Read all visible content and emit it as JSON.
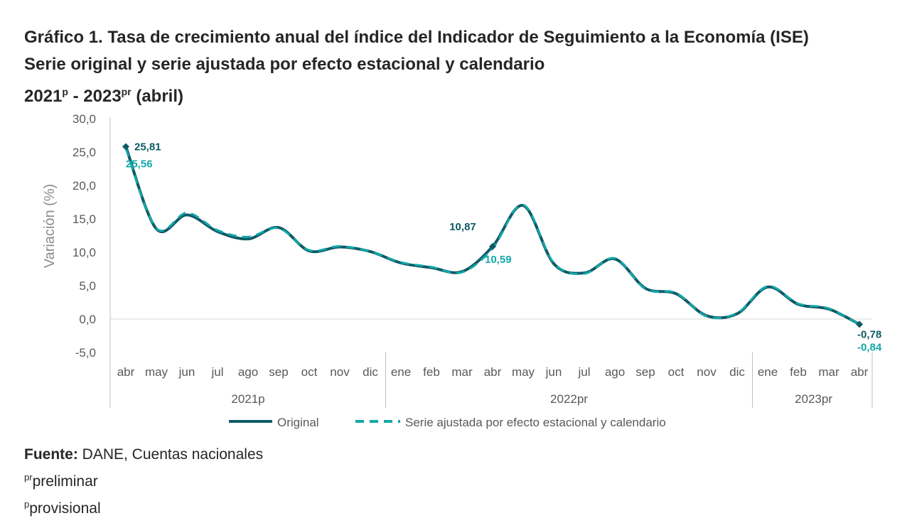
{
  "title": {
    "line1": "Gráfico 1. Tasa de crecimiento anual del índice del Indicador de Seguimiento a la Economía (ISE)",
    "line2": "Serie original y serie ajustada por efecto estacional y calendario",
    "line3_a": "2021",
    "line3_a_sup": "p",
    "line3_b": " - 2023",
    "line3_b_sup": "pr",
    "line3_c": " (abril)"
  },
  "chart_data": {
    "type": "line",
    "ylabel": "Variación (%)",
    "ylim": [
      -5,
      30
    ],
    "yticks": [
      30,
      25,
      20,
      15,
      10,
      5,
      0,
      -5
    ],
    "ytick_labels": [
      "30,0",
      "25,0",
      "20,0",
      "15,0",
      "10,0",
      "5,0",
      "0,0",
      "-5,0"
    ],
    "categories": [
      "abr",
      "may",
      "jun",
      "jul",
      "ago",
      "sep",
      "oct",
      "nov",
      "dic",
      "ene",
      "feb",
      "mar",
      "abr",
      "may",
      "jun",
      "jul",
      "ago",
      "sep",
      "oct",
      "nov",
      "dic",
      "ene",
      "feb",
      "mar",
      "abr"
    ],
    "groups": [
      {
        "label": "2021p",
        "start": 0,
        "end": 8
      },
      {
        "label": "2022pr",
        "start": 9,
        "end": 20
      },
      {
        "label": "2023pr",
        "start": 21,
        "end": 24
      }
    ],
    "series": [
      {
        "name": "Original",
        "color": "#0e5a66",
        "dashed": false,
        "values": [
          25.81,
          13.5,
          15.6,
          13.1,
          12.0,
          13.7,
          10.2,
          10.8,
          10.1,
          8.4,
          7.7,
          7.1,
          10.87,
          17.0,
          8.3,
          6.9,
          9.0,
          4.6,
          3.8,
          0.5,
          0.8,
          4.8,
          2.2,
          1.5,
          -0.78
        ]
      },
      {
        "name": "Serie ajustada por efecto estacional y calendario",
        "color": "#12a8a8",
        "dashed": true,
        "values": [
          25.56,
          13.6,
          15.9,
          13.3,
          12.3,
          13.6,
          10.3,
          10.9,
          10.1,
          8.5,
          7.8,
          7.0,
          10.59,
          17.1,
          8.4,
          6.8,
          9.1,
          4.5,
          3.9,
          0.4,
          0.9,
          4.9,
          2.3,
          1.6,
          -0.84
        ]
      }
    ],
    "annotations": [
      {
        "text": "25,81",
        "index": 0,
        "series": 0
      },
      {
        "text": "25,56",
        "index": 0,
        "series": 1
      },
      {
        "text": "10,87",
        "index": 12,
        "series": 0
      },
      {
        "text": "10,59",
        "index": 12,
        "series": 1
      },
      {
        "text": "-0,78",
        "index": 24,
        "series": 0
      },
      {
        "text": "-0,84",
        "index": 24,
        "series": 1
      }
    ],
    "legend_position": "bottom"
  },
  "source": {
    "label": "Fuente:",
    "text": " DANE, Cuentas nacionales",
    "note1_sup": "pr",
    "note1_text": "preliminar",
    "note2_sup": "p",
    "note2_text": "provisional"
  }
}
